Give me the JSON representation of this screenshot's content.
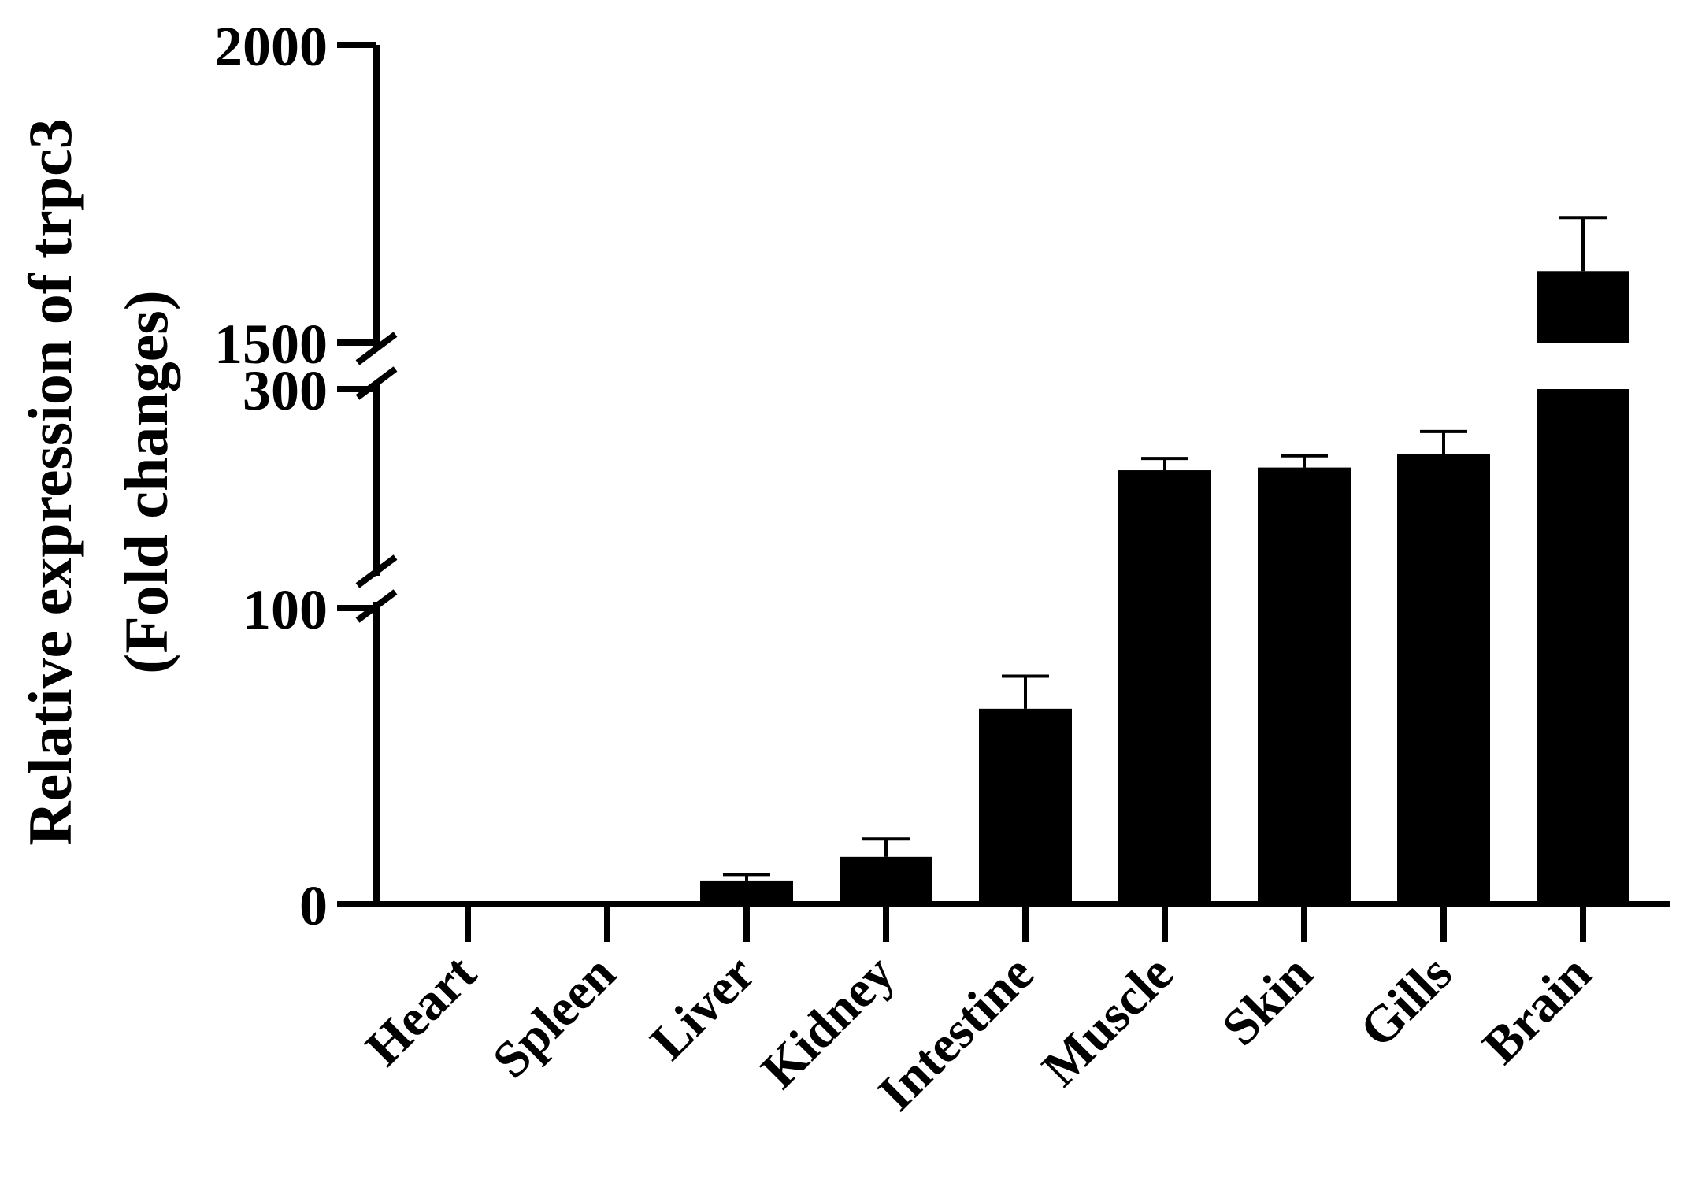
{
  "chart_data": {
    "type": "bar",
    "title": "",
    "ylabel_line1": "Relative expression of trpc3",
    "ylabel_line2": "(Fold changes)",
    "xlabel": "",
    "categories": [
      "Heart",
      "Spleen",
      "Liver",
      "Kidney",
      "Intestine",
      "Muscle",
      "Skin",
      "Gills",
      "Brain"
    ],
    "values": [
      1,
      1,
      8,
      16,
      66,
      210,
      213,
      228,
      1620
    ],
    "errors": [
      0,
      0,
      2,
      6,
      11,
      13,
      13,
      25,
      90
    ],
    "y_axis_broken": true,
    "y_segments": [
      {
        "range": [
          0,
          100
        ],
        "ticks": [
          0,
          100
        ]
      },
      {
        "range": [
          100,
          300
        ],
        "ticks": [
          300
        ]
      },
      {
        "range": [
          1500,
          2000
        ],
        "ticks": [
          1500,
          2000
        ]
      }
    ],
    "bar_color": "#000000",
    "grid": false,
    "legend": "none"
  }
}
